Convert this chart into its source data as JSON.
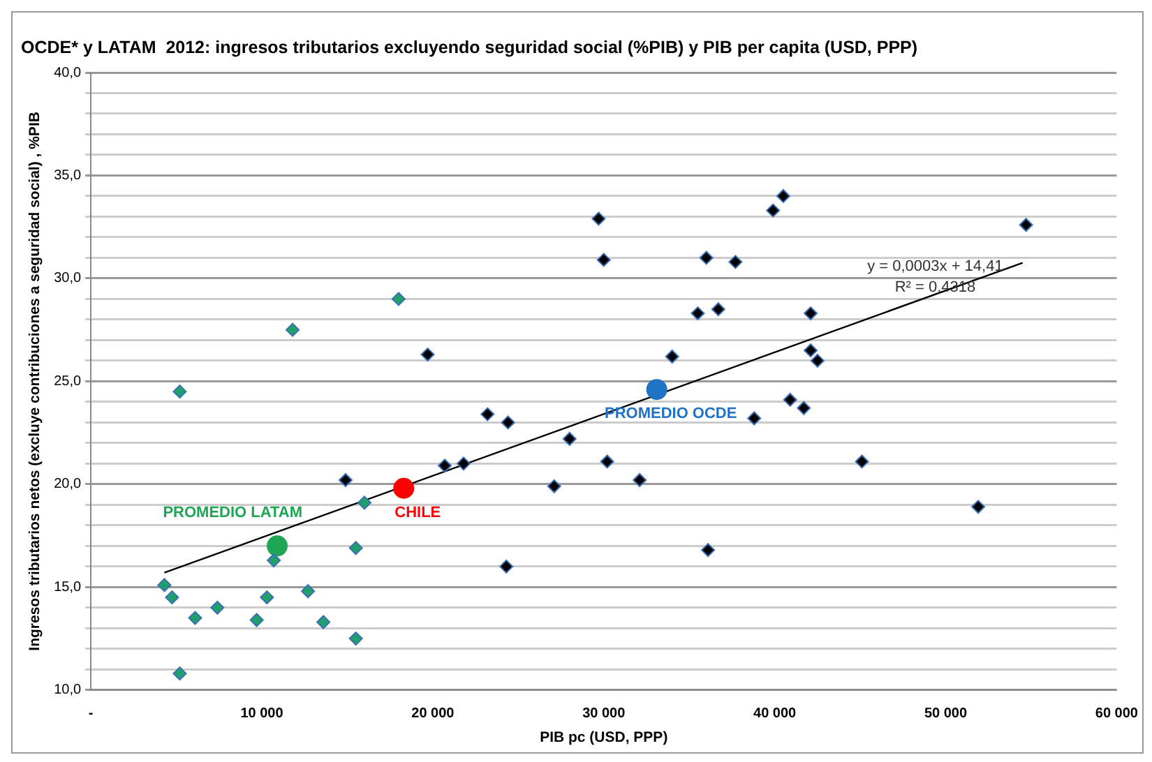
{
  "chart_data": {
    "type": "scatter",
    "title": "OCDE* y LATAM  2012: ingresos tributarios excluyendo seguridad social (%PIB) y PIB per capita (USD, PPP)",
    "xlabel": "PIB pc (USD, PPP)",
    "ylabel": "Ingresos tributarios netos (excluye contribuciones a seguridad social) , %PIB",
    "xlim": [
      0,
      60000
    ],
    "xticks": [
      {
        "value": 0,
        "label": "-"
      },
      {
        "value": 10000,
        "label": "10 000"
      },
      {
        "value": 20000,
        "label": "20 000"
      },
      {
        "value": 30000,
        "label": "30 000"
      },
      {
        "value": 40000,
        "label": "40 000"
      },
      {
        "value": 50000,
        "label": "50 000"
      },
      {
        "value": 60000,
        "label": "60 000"
      }
    ],
    "ylim": [
      10,
      40
    ],
    "yticks": [
      {
        "value": 10,
        "label": "10,0"
      },
      {
        "value": 11,
        "label": null
      },
      {
        "value": 12,
        "label": null
      },
      {
        "value": 13,
        "label": null
      },
      {
        "value": 14,
        "label": null
      },
      {
        "value": 15,
        "label": "15,0"
      },
      {
        "value": 16,
        "label": null
      },
      {
        "value": 17,
        "label": null
      },
      {
        "value": 18,
        "label": null
      },
      {
        "value": 19,
        "label": null
      },
      {
        "value": 20,
        "label": "20,0"
      },
      {
        "value": 21,
        "label": null
      },
      {
        "value": 22,
        "label": null
      },
      {
        "value": 23,
        "label": null
      },
      {
        "value": 24,
        "label": null
      },
      {
        "value": 25,
        "label": "25,0"
      },
      {
        "value": 26,
        "label": null
      },
      {
        "value": 27,
        "label": null
      },
      {
        "value": 28,
        "label": null
      },
      {
        "value": 29,
        "label": null
      },
      {
        "value": 30,
        "label": "30,0"
      },
      {
        "value": 31,
        "label": null
      },
      {
        "value": 32,
        "label": null
      },
      {
        "value": 33,
        "label": null
      },
      {
        "value": 34,
        "label": null
      },
      {
        "value": 35,
        "label": "35,0"
      },
      {
        "value": 36,
        "label": null
      },
      {
        "value": 37,
        "label": null
      },
      {
        "value": 38,
        "label": null
      },
      {
        "value": 39,
        "label": null
      },
      {
        "value": 40,
        "label": "40,0"
      }
    ],
    "grid": "y",
    "legend": false,
    "annotations": [
      "y = 0,0003x + 14,41",
      "R² = 0,4318"
    ],
    "series": [
      {
        "color": "#1fa06a",
        "marker": "diamond",
        "x": [
          4300,
          4750,
          6100,
          7400,
          9700,
          10300,
          12700,
          13600,
          15500,
          5200,
          5200,
          11800,
          18000,
          16000,
          15500,
          10700
        ],
        "values": [
          15.1,
          14.5,
          13.5,
          14.0,
          13.4,
          14.5,
          14.8,
          13.3,
          12.5,
          10.8,
          24.5,
          27.5,
          29.0,
          19.1,
          16.9,
          16.3
        ]
      },
      {
        "color": "#000000",
        "marker": "diamond",
        "x": [
          14900,
          19700,
          20700,
          21800,
          23200,
          24400,
          24300,
          28000,
          27100,
          30200,
          32100,
          29700,
          30000,
          34000,
          35500,
          36000,
          36700,
          37700,
          36100,
          38800,
          39900,
          40500,
          40900,
          41700,
          42100,
          42100,
          42500,
          45100,
          51900,
          54700
        ],
        "values": [
          20.2,
          26.3,
          20.9,
          21.0,
          23.4,
          23.0,
          16.0,
          22.2,
          19.9,
          21.1,
          20.2,
          32.9,
          30.9,
          26.2,
          28.3,
          31.0,
          28.5,
          30.8,
          16.8,
          23.2,
          33.3,
          34.0,
          24.1,
          23.7,
          28.3,
          26.5,
          26.0,
          21.1,
          18.9,
          32.6
        ]
      },
      {
        "name": "PROMEDIO LATAM",
        "color": "#1fa655",
        "marker": "circle",
        "x": [
          10900
        ],
        "values": [
          17.0
        ]
      },
      {
        "name": "CHILE",
        "color": "#ff0000",
        "marker": "circle",
        "x": [
          18300
        ],
        "values": [
          19.8
        ]
      },
      {
        "name": "PROMEDIO OCDE",
        "color": "#1f72c4",
        "marker": "circle",
        "x": [
          33100
        ],
        "values": [
          24.6
        ]
      },
      {
        "type": "line",
        "color": "#000000",
        "marker": "none",
        "x": [
          4300,
          54500
        ],
        "values": [
          15.7,
          30.76
        ]
      }
    ]
  }
}
